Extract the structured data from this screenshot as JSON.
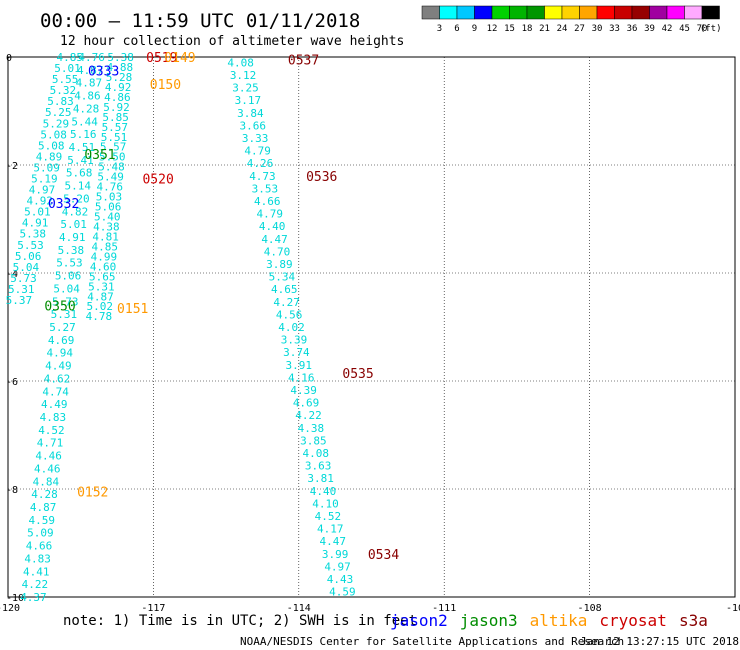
{
  "header": {
    "title": "00:00 – 11:59 UTC 01/11/2018",
    "subtitle": "12 hour collection of altimeter wave heights"
  },
  "scale": {
    "labels": [
      "3",
      "6",
      "9",
      "12",
      "15",
      "18",
      "21",
      "24",
      "27",
      "30",
      "33",
      "36",
      "39",
      "42",
      "45",
      "70"
    ],
    "unit": "(ft)",
    "colors": [
      "#7f7f7f",
      "#00ffff",
      "#00c8ff",
      "#0000ff",
      "#00d200",
      "#00b400",
      "#009600",
      "#ffff00",
      "#ffd200",
      "#ffa500",
      "#ff0000",
      "#c80000",
      "#960000",
      "#a000a0",
      "#ff00ff",
      "#ffaaff",
      "#000000"
    ]
  },
  "axes": {
    "x_ticks": [
      "-120",
      "-117",
      "-114",
      "-111",
      "-108",
      "-10"
    ],
    "y_ticks": [
      "0",
      "-2",
      "-4",
      "-6",
      "-8",
      "-10"
    ]
  },
  "footer": {
    "note": "note: 1) Time is in UTC; 2) SWH is in feet",
    "credit": "NOAA/NESDIS Center for Satellite Applications and Research",
    "timestamp": "Jan 12 13:27:15 UTC 2018"
  },
  "legend": [
    {
      "name": "jason2",
      "color": "#0000ff"
    },
    {
      "name": "jason3",
      "color": "#008c00"
    },
    {
      "name": "altika",
      "color": "#ff9900"
    },
    {
      "name": "cryosat",
      "color": "#cc0000"
    },
    {
      "name": "s3a",
      "color": "#880000"
    }
  ],
  "chart_data": {
    "type": "scatter",
    "xlim": [
      -120,
      -100
    ],
    "ylim": [
      -10,
      0
    ],
    "grid": true,
    "passes": [
      {
        "label": "0519",
        "satellite": "cryosat",
        "lon": -116.2,
        "lat": 0.0
      },
      {
        "label": "0149",
        "satellite": "altika",
        "lon": -115.7,
        "lat": 0.0
      },
      {
        "label": "0333",
        "satellite": "jason2",
        "lon": -117.8,
        "lat": -0.25
      },
      {
        "label": "0150",
        "satellite": "altika",
        "lon": -116.1,
        "lat": -0.5
      },
      {
        "label": "0351",
        "satellite": "jason3",
        "lon": -117.9,
        "lat": -1.8
      },
      {
        "label": "0520",
        "satellite": "cryosat",
        "lon": -116.3,
        "lat": -2.25
      },
      {
        "label": "0332",
        "satellite": "jason2",
        "lon": -118.9,
        "lat": -2.7
      },
      {
        "label": "0350",
        "satellite": "jason3",
        "lon": -119.0,
        "lat": -4.6
      },
      {
        "label": "0151",
        "satellite": "altika",
        "lon": -117.0,
        "lat": -4.65
      },
      {
        "label": "0152",
        "satellite": "altika",
        "lon": -118.1,
        "lat": -8.05
      },
      {
        "label": "0537",
        "satellite": "s3a",
        "lon": -112.3,
        "lat": -0.05
      },
      {
        "label": "0536",
        "satellite": "s3a",
        "lon": -111.8,
        "lat": -2.2
      },
      {
        "label": "0535",
        "satellite": "s3a",
        "lon": -110.8,
        "lat": -5.85
      },
      {
        "label": "0534",
        "satellite": "s3a",
        "lon": -110.1,
        "lat": -9.2
      }
    ],
    "tracks": [
      {
        "satellite": "jason2",
        "lon_start": -118.3,
        "lat_start": 0.0,
        "lon_end": -119.7,
        "lat_end": -4.5,
        "values": [
          "4.85",
          "5.01",
          "5.55",
          "5.32",
          "5.83",
          "5.25",
          "5.29",
          "5.08",
          "5.08",
          "4.89",
          "5.09",
          "5.19",
          "4.97",
          "4.92",
          "5.01",
          "4.91",
          "5.38",
          "5.53",
          "5.06",
          "5.04",
          "5.73",
          "5.31",
          "5.37"
        ]
      },
      {
        "satellite": "jason3",
        "lon_start": -117.7,
        "lat_start": 0.0,
        "lon_end": -119.3,
        "lat_end": -10.0,
        "values": [
          "4.76",
          "4.87",
          "4.87",
          "4.86",
          "4.28",
          "5.44",
          "5.16",
          "4.51",
          "5.41",
          "5.68",
          "5.14",
          "5.20",
          "4.82",
          "5.01",
          "4.91",
          "5.38",
          "5.53",
          "5.06",
          "5.04",
          "5.73",
          "5.31",
          "5.27",
          "4.69",
          "4.94",
          "4.49",
          "4.62",
          "4.74",
          "4.49",
          "4.83",
          "4.52",
          "4.71",
          "4.46",
          "4.46",
          "4.84",
          "4.28",
          "4.87",
          "4.59",
          "5.09",
          "4.66",
          "4.83",
          "4.41",
          "4.22",
          "4.37"
        ]
      },
      {
        "satellite": "altika",
        "lon_start": -116.9,
        "lat_start": 0.0,
        "lon_end": -117.5,
        "lat_end": -4.8,
        "values": [
          "5.38",
          "4.88",
          "5.28",
          "4.92",
          "4.86",
          "5.92",
          "5.85",
          "5.57",
          "5.51",
          "5.57",
          "5.50",
          "5.48",
          "5.49",
          "4.76",
          "5.03",
          "5.06",
          "5.40",
          "4.38",
          "4.81",
          "4.85",
          "4.99",
          "4.60",
          "5.65",
          "5.31",
          "4.87",
          "5.02",
          "4.78"
        ]
      },
      {
        "satellite": "s3a",
        "lon_start": -113.6,
        "lat_start": -0.1,
        "lon_end": -110.8,
        "lat_end": -9.9,
        "values": [
          "4.08",
          "3.12",
          "3.25",
          "3.17",
          "3.84",
          "3.66",
          "3.33",
          "4.79",
          "4.26",
          "4.73",
          "3.53",
          "4.66",
          "4.79",
          "4.40",
          "4.47",
          "4.70",
          "3.89",
          "5.34",
          "4.65",
          "4.27",
          "4.56",
          "4.02",
          "3.39",
          "3.74",
          "3.91",
          "4.16",
          "4.39",
          "4.69",
          "4.22",
          "4.38",
          "3.85",
          "4.08",
          "3.63",
          "3.81",
          "4.40",
          "4.10",
          "4.52",
          "4.17",
          "4.47",
          "3.99",
          "4.97",
          "4.43",
          "4.59"
        ]
      }
    ]
  }
}
